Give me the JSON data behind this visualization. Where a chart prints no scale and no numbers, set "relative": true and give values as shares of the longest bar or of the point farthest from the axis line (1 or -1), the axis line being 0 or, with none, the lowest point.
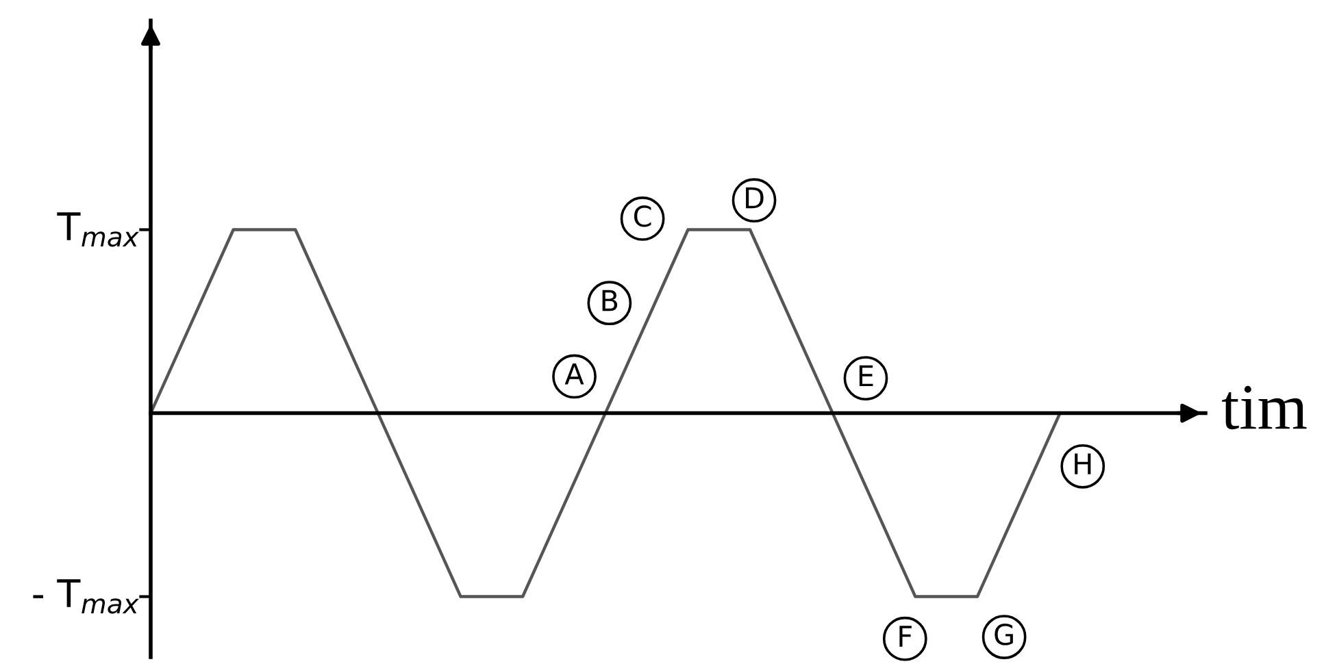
{
  "chart_data": {
    "type": "line",
    "xlabel": "tim",
    "categories": [
      null,
      null,
      null,
      null,
      null,
      null,
      null,
      null,
      null,
      null,
      null,
      null,
      null,
      null,
      null,
      null,
      null,
      null,
      null,
      null,
      null,
      null,
      null,
      null,
      null,
      null,
      null,
      null,
      null,
      null,
      null,
      null,
      null,
      null,
      null,
      null,
      null,
      null,
      null,
      null,
      null,
      null,
      null,
      null,
      null
    ],
    "series": [
      {
        "color": "#555555",
        "values": [
          0,
          0.25,
          0.5,
          0.75,
          1,
          1,
          1,
          1,
          0.75,
          0.5,
          0.25,
          0,
          -0.25,
          -0.5,
          -0.75,
          -1,
          -1,
          -1,
          -1,
          -0.75,
          -0.5,
          -0.25,
          0,
          0.25,
          0.5,
          0.75,
          1,
          1,
          1,
          1,
          0.75,
          0.5,
          0.25,
          0,
          -0.25,
          -0.5,
          -0.75,
          -1,
          -1,
          -1,
          -1,
          -0.75,
          -0.5,
          -0.25,
          0
        ]
      }
    ],
    "relative": true,
    "grid": false,
    "legend": false,
    "marker": "none",
    "line_style": "solid",
    "annotations": [
      "T$_{max}$",
      "- T$_{max}$",
      "A",
      "B",
      "C",
      "D",
      "E",
      "F",
      "G",
      "H"
    ]
  }
}
